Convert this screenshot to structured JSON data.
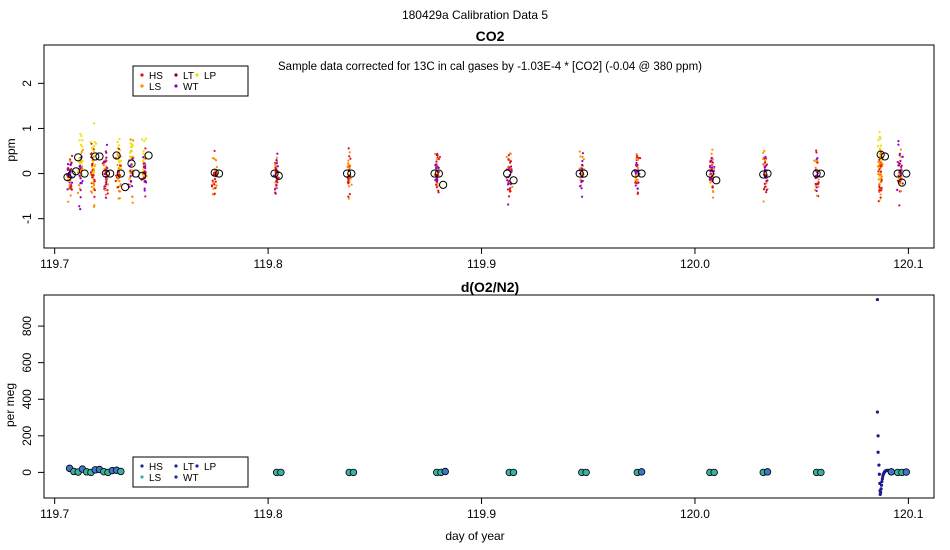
{
  "figure_title": "180429a   Calibration Data 5",
  "chart_data": [
    {
      "id": "co2",
      "type": "scatter",
      "title": "CO2",
      "annotation": "Sample data corrected for 13C in cal gases by -1.03E-4 * [CO2] (-0.04 @ 380 ppm)",
      "xlabel": "",
      "ylabel": "ppm",
      "xlim": [
        119.695,
        120.112
      ],
      "ylim": [
        -1.65,
        2.85
      ],
      "xticks": [
        119.7,
        119.8,
        119.9,
        120.0,
        120.1
      ],
      "xtick_labels": [
        "119.7",
        "119.8",
        "119.9",
        "120.0",
        "120.1"
      ],
      "yticks": [
        -1,
        0,
        1,
        2
      ],
      "ytick_labels": [
        "-1",
        "0",
        "1",
        "2"
      ],
      "legend": {
        "position": "top-left",
        "entries": [
          {
            "label": "HS",
            "color": "#e0101a"
          },
          {
            "label": "LT",
            "color": "#8b0000"
          },
          {
            "label": "LP",
            "color": "#f0e000"
          },
          {
            "label": "LS",
            "color": "#ff8c00"
          },
          {
            "label": "WT",
            "color": "#8f00c8"
          }
        ]
      },
      "series_colors": {
        "HS": "#e0101a",
        "LS": "#ff8c00",
        "LT": "#8b0000",
        "WT": "#8f00c8",
        "LP": "#f0e000"
      },
      "scatter_clusters": [
        {
          "x": 119.707,
          "colors": [
            "HS",
            "LS",
            "WT"
          ],
          "n": 45,
          "yspread": 0.9
        },
        {
          "x": 119.712,
          "colors": [
            "LP",
            "LS",
            "WT"
          ],
          "n": 55,
          "yspread": 1.0
        },
        {
          "x": 119.718,
          "colors": [
            "LP",
            "HS",
            "LS"
          ],
          "n": 60,
          "yspread": 1.05
        },
        {
          "x": 119.724,
          "colors": [
            "LS",
            "WT",
            "HS"
          ],
          "n": 50,
          "yspread": 0.95
        },
        {
          "x": 119.73,
          "colors": [
            "LP",
            "HS",
            "LS"
          ],
          "n": 55,
          "yspread": 1.0
        },
        {
          "x": 119.736,
          "colors": [
            "WT",
            "LS",
            "LP"
          ],
          "n": 50,
          "yspread": 1.0
        },
        {
          "x": 119.742,
          "colors": [
            "LP",
            "HS",
            "WT"
          ],
          "n": 50,
          "yspread": 0.95
        },
        {
          "x": 119.775,
          "colors": [
            "LS",
            "HS"
          ],
          "n": 35,
          "yspread": 0.75
        },
        {
          "x": 119.804,
          "colors": [
            "HS",
            "LS",
            "WT"
          ],
          "n": 40,
          "yspread": 0.8
        },
        {
          "x": 119.838,
          "colors": [
            "LS",
            "HS"
          ],
          "n": 35,
          "yspread": 0.85
        },
        {
          "x": 119.879,
          "colors": [
            "HS",
            "LS",
            "WT"
          ],
          "n": 45,
          "yspread": 0.95
        },
        {
          "x": 119.913,
          "colors": [
            "HS",
            "LS",
            "WT"
          ],
          "n": 45,
          "yspread": 0.95
        },
        {
          "x": 119.947,
          "colors": [
            "LS",
            "WT"
          ],
          "n": 35,
          "yspread": 0.75
        },
        {
          "x": 119.973,
          "colors": [
            "HS",
            "LS",
            "WT"
          ],
          "n": 40,
          "yspread": 0.8
        },
        {
          "x": 120.008,
          "colors": [
            "HS",
            "LS",
            "WT"
          ],
          "n": 45,
          "yspread": 0.95
        },
        {
          "x": 120.033,
          "colors": [
            "HS",
            "LS",
            "WT"
          ],
          "n": 40,
          "yspread": 0.85
        },
        {
          "x": 120.057,
          "colors": [
            "HS",
            "LS",
            "WT"
          ],
          "n": 35,
          "yspread": 0.8
        },
        {
          "x": 120.087,
          "colors": [
            "LP",
            "HS",
            "LS"
          ],
          "n": 80,
          "yspread": 1.25
        },
        {
          "x": 120.096,
          "colors": [
            "HS",
            "WT",
            "LS"
          ],
          "n": 45,
          "yspread": 0.95
        }
      ],
      "means": [
        {
          "x": 119.706,
          "y": -0.08
        },
        {
          "x": 119.708,
          "y": -0.02
        },
        {
          "x": 119.71,
          "y": 0.05
        },
        {
          "x": 119.711,
          "y": 0.36
        },
        {
          "x": 119.714,
          "y": 0.0
        },
        {
          "x": 119.719,
          "y": 0.38
        },
        {
          "x": 119.721,
          "y": 0.38
        },
        {
          "x": 119.724,
          "y": 0.0
        },
        {
          "x": 119.726,
          "y": 0.0
        },
        {
          "x": 119.729,
          "y": 0.4
        },
        {
          "x": 119.731,
          "y": 0.0
        },
        {
          "x": 119.733,
          "y": -0.3
        },
        {
          "x": 119.736,
          "y": 0.22
        },
        {
          "x": 119.738,
          "y": 0.0
        },
        {
          "x": 119.741,
          "y": -0.05
        },
        {
          "x": 119.744,
          "y": 0.4
        },
        {
          "x": 119.775,
          "y": 0.02
        },
        {
          "x": 119.777,
          "y": 0.0
        },
        {
          "x": 119.803,
          "y": 0.0
        },
        {
          "x": 119.805,
          "y": -0.05
        },
        {
          "x": 119.837,
          "y": 0.0
        },
        {
          "x": 119.839,
          "y": 0.0
        },
        {
          "x": 119.878,
          "y": 0.0
        },
        {
          "x": 119.88,
          "y": 0.0
        },
        {
          "x": 119.882,
          "y": -0.25
        },
        {
          "x": 119.912,
          "y": 0.0
        },
        {
          "x": 119.915,
          "y": -0.15
        },
        {
          "x": 119.946,
          "y": 0.0
        },
        {
          "x": 119.948,
          "y": 0.0
        },
        {
          "x": 119.972,
          "y": 0.0
        },
        {
          "x": 119.975,
          "y": 0.0
        },
        {
          "x": 120.007,
          "y": 0.0
        },
        {
          "x": 120.01,
          "y": -0.15
        },
        {
          "x": 120.032,
          "y": -0.02
        },
        {
          "x": 120.034,
          "y": 0.0
        },
        {
          "x": 120.057,
          "y": 0.0
        },
        {
          "x": 120.059,
          "y": 0.0
        },
        {
          "x": 120.087,
          "y": 0.42
        },
        {
          "x": 120.089,
          "y": 0.38
        },
        {
          "x": 120.095,
          "y": 0.0
        },
        {
          "x": 120.097,
          "y": -0.2
        },
        {
          "x": 120.099,
          "y": 0.0
        }
      ]
    },
    {
      "id": "o2n2",
      "type": "scatter",
      "title": "d(O2/N2)",
      "xlabel": "day of year",
      "ylabel": "per meg",
      "xlim": [
        119.695,
        120.112
      ],
      "ylim": [
        -140,
        970
      ],
      "xticks": [
        119.7,
        119.8,
        119.9,
        120.0,
        120.1
      ],
      "xtick_labels": [
        "119.7",
        "119.8",
        "119.9",
        "120.0",
        "120.1"
      ],
      "yticks": [
        0,
        200,
        400,
        600,
        800
      ],
      "ytick_labels": [
        "0",
        "200",
        "400",
        "600",
        "800"
      ],
      "legend": {
        "position": "bottom-left",
        "entries": [
          {
            "label": "HS",
            "color": "#1a2a9a"
          },
          {
            "label": "LT",
            "color": "#1a2a9a"
          },
          {
            "label": "LP",
            "color": "#1a2a9a"
          },
          {
            "label": "LS",
            "color": "#3ab0a0"
          },
          {
            "label": "WT",
            "color": "#1a2a9a"
          }
        ]
      },
      "points": [
        {
          "x": 119.707,
          "y": 22,
          "fill": "#3a78c8"
        },
        {
          "x": 119.709,
          "y": 5,
          "fill": "#3ab0a0"
        },
        {
          "x": 119.711,
          "y": 2,
          "fill": "#3ab0a0"
        },
        {
          "x": 119.713,
          "y": 18,
          "fill": "#3a78c8"
        },
        {
          "x": 119.715,
          "y": 3,
          "fill": "#3ab0a0"
        },
        {
          "x": 119.717,
          "y": 0,
          "fill": "#3ab0a0"
        },
        {
          "x": 119.719,
          "y": 14,
          "fill": "#3a78c8"
        },
        {
          "x": 119.721,
          "y": 16,
          "fill": "#3a78c8"
        },
        {
          "x": 119.723,
          "y": 4,
          "fill": "#3ab0a0"
        },
        {
          "x": 119.725,
          "y": 0,
          "fill": "#3ab0a0"
        },
        {
          "x": 119.727,
          "y": 10,
          "fill": "#3a78c8"
        },
        {
          "x": 119.729,
          "y": 12,
          "fill": "#3a78c8"
        },
        {
          "x": 119.731,
          "y": 5,
          "fill": "#3ab0a0"
        },
        {
          "x": 119.804,
          "y": 0,
          "fill": "#3ab0a0"
        },
        {
          "x": 119.806,
          "y": 0,
          "fill": "#3ab0a0"
        },
        {
          "x": 119.838,
          "y": 0,
          "fill": "#3ab0a0"
        },
        {
          "x": 119.84,
          "y": 0,
          "fill": "#3ab0a0"
        },
        {
          "x": 119.879,
          "y": 0,
          "fill": "#3ab0a0"
        },
        {
          "x": 119.881,
          "y": 0,
          "fill": "#3ab0a0"
        },
        {
          "x": 119.883,
          "y": 5,
          "fill": "#3a78c8"
        },
        {
          "x": 119.913,
          "y": 0,
          "fill": "#3ab0a0"
        },
        {
          "x": 119.915,
          "y": 0,
          "fill": "#3ab0a0"
        },
        {
          "x": 119.947,
          "y": 0,
          "fill": "#3ab0a0"
        },
        {
          "x": 119.949,
          "y": 0,
          "fill": "#3ab0a0"
        },
        {
          "x": 119.973,
          "y": 0,
          "fill": "#3ab0a0"
        },
        {
          "x": 119.975,
          "y": 3,
          "fill": "#3a78c8"
        },
        {
          "x": 120.007,
          "y": 0,
          "fill": "#3ab0a0"
        },
        {
          "x": 120.009,
          "y": 0,
          "fill": "#3ab0a0"
        },
        {
          "x": 120.032,
          "y": 0,
          "fill": "#3ab0a0"
        },
        {
          "x": 120.034,
          "y": 3,
          "fill": "#3a78c8"
        },
        {
          "x": 120.057,
          "y": 0,
          "fill": "#3ab0a0"
        },
        {
          "x": 120.059,
          "y": 0,
          "fill": "#3ab0a0"
        },
        {
          "x": 120.092,
          "y": 3,
          "fill": "#3a78c8"
        },
        {
          "x": 120.095,
          "y": 0,
          "fill": "#3ab0a0"
        },
        {
          "x": 120.097,
          "y": 0,
          "fill": "#3ab0a0"
        },
        {
          "x": 120.099,
          "y": 2,
          "fill": "#3a78c8"
        }
      ],
      "dots": [
        {
          "x": 119.712,
          "y": 8
        },
        {
          "x": 119.714,
          "y": 12
        },
        {
          "x": 119.716,
          "y": 6
        },
        {
          "x": 119.718,
          "y": 10
        },
        {
          "x": 119.72,
          "y": 9
        },
        {
          "x": 119.722,
          "y": 7
        },
        {
          "x": 119.724,
          "y": 11
        },
        {
          "x": 119.726,
          "y": 6
        },
        {
          "x": 119.728,
          "y": 9
        },
        {
          "x": 119.73,
          "y": 8
        },
        {
          "x": 120.0855,
          "y": 945
        },
        {
          "x": 120.0855,
          "y": 330
        },
        {
          "x": 120.0858,
          "y": 200
        },
        {
          "x": 120.0858,
          "y": 110
        },
        {
          "x": 120.0862,
          "y": 40
        },
        {
          "x": 120.0864,
          "y": -10
        },
        {
          "x": 120.0866,
          "y": -60
        },
        {
          "x": 120.0867,
          "y": -100
        },
        {
          "x": 120.0868,
          "y": -120
        },
        {
          "x": 120.087,
          "y": -110
        },
        {
          "x": 120.0872,
          "y": -90
        },
        {
          "x": 120.0874,
          "y": -70
        },
        {
          "x": 120.0876,
          "y": -50
        },
        {
          "x": 120.0878,
          "y": -35
        },
        {
          "x": 120.088,
          "y": -22
        },
        {
          "x": 120.0882,
          "y": -12
        },
        {
          "x": 120.0885,
          "y": -5
        },
        {
          "x": 120.0888,
          "y": 2
        },
        {
          "x": 120.0891,
          "y": 6
        },
        {
          "x": 120.0894,
          "y": 9
        },
        {
          "x": 120.0897,
          "y": 10
        },
        {
          "x": 120.09,
          "y": 11
        },
        {
          "x": 120.0905,
          "y": 11
        },
        {
          "x": 120.091,
          "y": 10
        },
        {
          "x": 120.0915,
          "y": 10
        },
        {
          "x": 120.092,
          "y": 9
        }
      ]
    }
  ]
}
